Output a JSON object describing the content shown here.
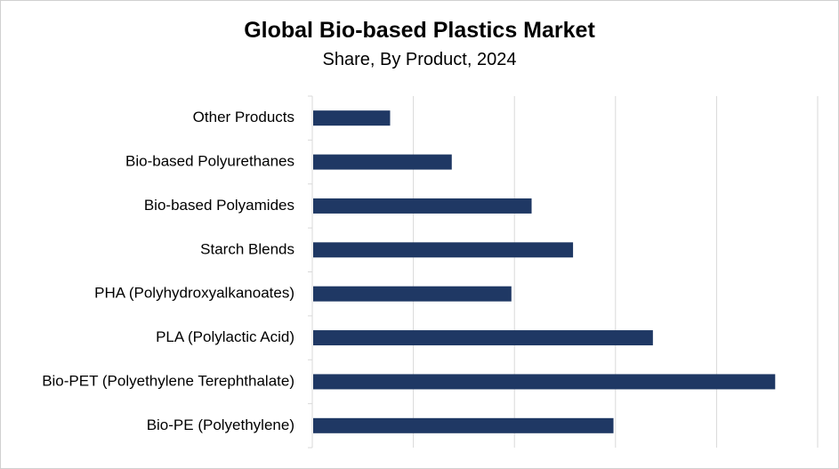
{
  "chart_data": {
    "type": "bar",
    "orientation": "horizontal",
    "title": "Global Bio-based Plastics Market",
    "subtitle": "Share, By Product, 2024",
    "categories": [
      "Other Products",
      "Bio-based Polyurethanes",
      "Bio-based Polyamides",
      "Starch Blends",
      "PHA (Polyhydroxyalkanoates)",
      "PLA (Polylactic Acid)",
      "Bio-PET (Polyethylene Terephthalate)",
      "Bio-PE (Polyethylene)"
    ],
    "values": [
      7.7,
      13.8,
      21.7,
      25.8,
      19.7,
      33.7,
      45.8,
      29.8
    ],
    "xlim": [
      0,
      50
    ],
    "grid_step": 10,
    "grid": true,
    "legend": "none",
    "bar_color": "#1f3864",
    "grid_color": "#d9d9d9"
  }
}
